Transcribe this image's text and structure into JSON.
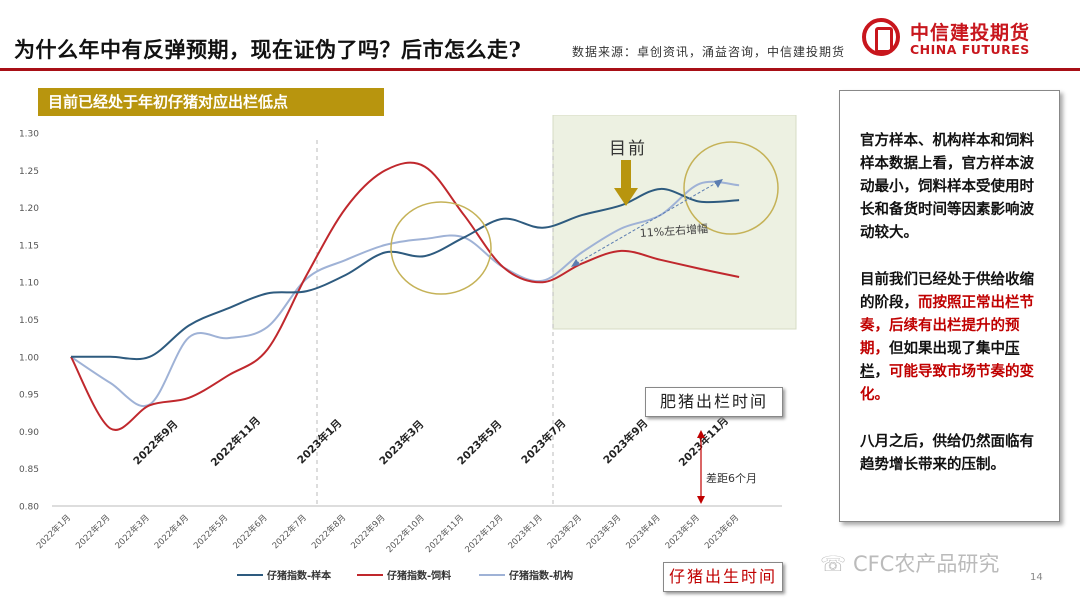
{
  "header": {
    "title": "为什么年中有反弹预期，现在证伪了吗？后市怎么走?",
    "source": "数据来源：卓创资讯，涌益咨询，中信建投期货",
    "logo_cn": "中信建投期货",
    "logo_en": "CHINA FUTURES"
  },
  "chart_title": "目前已经处于年初仔猪对应出栏低点",
  "annotations": {
    "now": "目前",
    "growth": "11%左右增幅",
    "lag": "差距6个月",
    "fatten_time": "肥猪出栏时间",
    "piglet_time": "仔猪出生时间"
  },
  "sidebar": {
    "p1": "官方样本、机构样本和饲料样本数据上看，官方样本波动最小，饲料样本受使用时长和备货时间等因素影响波动较大。",
    "p2_a": "目前我们已经处于供给收缩的阶段，",
    "p2_b": "而按照正常出栏节奏，后续有出栏提升的预期，",
    "p2_c": "但如果出现了集中",
    "p2_d": "压栏",
    "p2_e": "，",
    "p2_f": "可能导致市场节奏的变化。",
    "p3": "八月之后，供给仍然面临有趋势增长带来的压制。"
  },
  "watermark": "CFC农产品研究",
  "page_number": "14",
  "colors": {
    "sample": "#2e5b7f",
    "feed": "#c0282d",
    "inst": "#9fb2d6",
    "gold": "#b8950e"
  },
  "chart_data": {
    "type": "line",
    "ylim": [
      0.8,
      1.3
    ],
    "yticks": [
      "0.80",
      "0.85",
      "0.90",
      "0.95",
      "1.00",
      "1.05",
      "1.10",
      "1.15",
      "1.20",
      "1.25",
      "1.30"
    ],
    "categories": [
      "2022年1月",
      "2022年2月",
      "2022年3月",
      "2022年4月",
      "2022年5月",
      "2022年6月",
      "2022年7月",
      "2022年8月",
      "2022年9月",
      "2022年10月",
      "2022年11月",
      "2022年12月",
      "2023年1月",
      "2023年2月",
      "2023年3月",
      "2023年4月",
      "2023年5月",
      "2023年6月"
    ],
    "secondary_categories": [
      "2022年9月",
      "2022年11月",
      "2023年1月",
      "2023年3月",
      "2023年5月",
      "2023年7月",
      "2023年9月",
      "2023年11月"
    ],
    "series": [
      {
        "name": "仔猪指数-样本",
        "color": "#2e5b7f",
        "values": [
          1.0,
          1.0,
          1.0,
          1.042,
          1.065,
          1.085,
          1.088,
          1.11,
          1.14,
          1.135,
          1.16,
          1.185,
          1.173,
          1.19,
          1.203,
          1.225,
          1.208,
          1.21
        ]
      },
      {
        "name": "仔猪指数-饲料",
        "color": "#c0282d",
        "values": [
          1.0,
          0.904,
          0.935,
          0.945,
          0.975,
          1.01,
          1.11,
          1.2,
          1.25,
          1.255,
          1.19,
          1.12,
          1.1,
          1.125,
          1.142,
          1.13,
          1.118,
          1.107
        ]
      },
      {
        "name": "仔猪指数-机构",
        "color": "#9fb2d6",
        "values": [
          1.0,
          0.965,
          0.936,
          1.026,
          1.025,
          1.04,
          1.105,
          1.13,
          1.15,
          1.158,
          1.16,
          1.12,
          1.102,
          1.14,
          1.172,
          1.19,
          1.232,
          1.23
        ]
      }
    ]
  }
}
